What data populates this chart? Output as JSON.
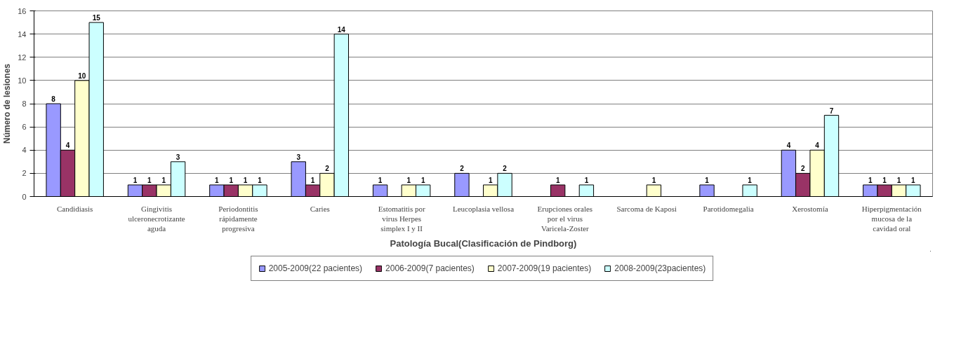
{
  "chart_data": {
    "type": "bar",
    "xlabel": "Patología Bucal(Clasificación de Pindborg)",
    "ylabel": "Número de lesiones",
    "categories": [
      "Candidiasis",
      "Gingivitis ulceronecrotizante aguda",
      "Periodontitis rápidamente progresiva",
      "Caries",
      "Estomatitis por virus Herpes simplex I y II",
      "Leucoplasia vellosa",
      "Erupciones orales por el virus Varicela-Zoster",
      "Sarcoma de Kaposi",
      "Parotidomegalia",
      "Xerostomía",
      "Hiperpigmentación mucosa de la cavidad oral"
    ],
    "series": [
      {
        "name": "2005-2009(22 pacientes)",
        "color": "#9999ff",
        "values": [
          8,
          1,
          1,
          3,
          1,
          2,
          null,
          null,
          1,
          4,
          1
        ]
      },
      {
        "name": "2006-2009(7 pacientes)",
        "color": "#993366",
        "values": [
          4,
          1,
          1,
          1,
          null,
          null,
          1,
          null,
          null,
          2,
          1
        ]
      },
      {
        "name": "2007-2009(19 pacientes)",
        "color": "#ffffcc",
        "values": [
          10,
          1,
          1,
          2,
          1,
          1,
          null,
          1,
          null,
          4,
          1
        ]
      },
      {
        "name": "2008-2009(23pacientes)",
        "color": "#ccffff",
        "values": [
          15,
          3,
          1,
          14,
          1,
          2,
          1,
          null,
          1,
          7,
          1
        ]
      }
    ],
    "ylim": [
      0,
      16
    ],
    "yticks": [
      0,
      2,
      4,
      6,
      8,
      10,
      12,
      14,
      16
    ],
    "grid": "y",
    "legend": "bottom",
    "data_labels": true
  }
}
